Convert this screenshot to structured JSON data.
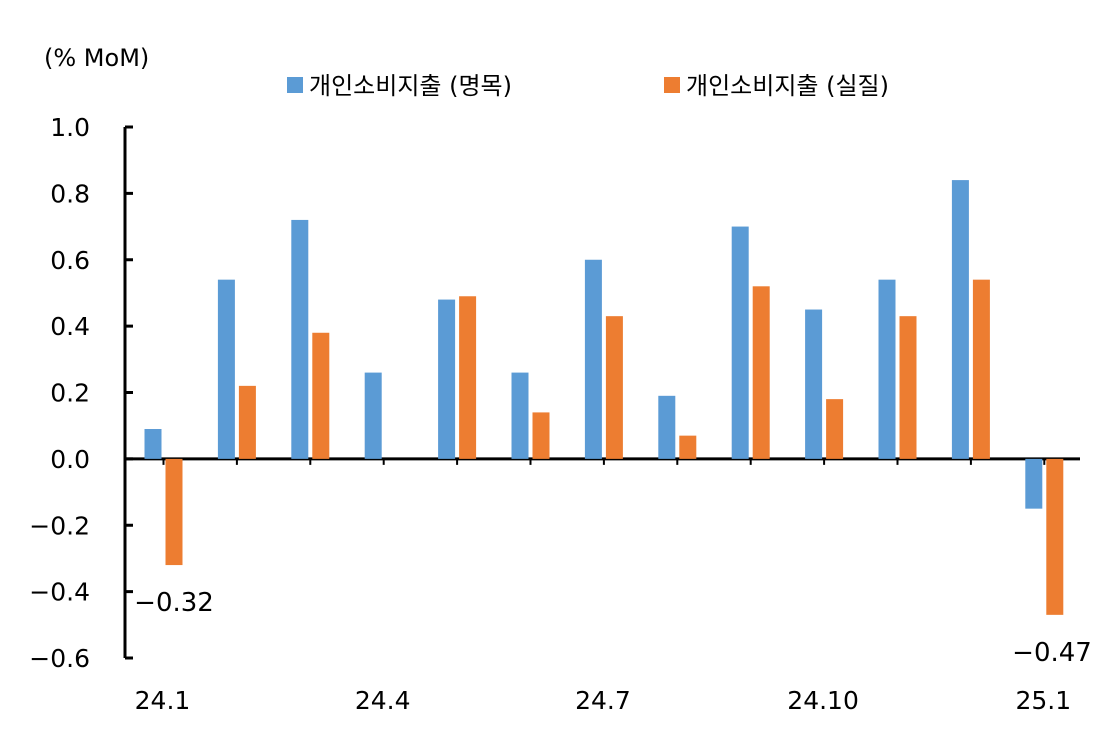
{
  "chart_data": {
    "type": "bar",
    "unit_label": "(% MoM)",
    "x_tick_labels": [
      "24.1",
      "24.4",
      "24.7",
      "24.10",
      "25.1"
    ],
    "categories": [
      "24.1",
      "24.2",
      "24.3",
      "24.4",
      "24.5",
      "24.6",
      "24.7",
      "24.8",
      "24.9",
      "24.10",
      "24.11",
      "24.12",
      "25.1"
    ],
    "series": [
      {
        "name": "개인소비지출 (명목)",
        "color": "#5B9BD5",
        "values": [
          0.09,
          0.54,
          0.72,
          0.26,
          0.48,
          0.26,
          0.6,
          0.19,
          0.7,
          0.45,
          0.54,
          0.84,
          -0.15
        ]
      },
      {
        "name": "개인소비지출 (실질)",
        "color": "#ED7D31",
        "values": [
          -0.32,
          0.22,
          0.38,
          0.0,
          0.49,
          0.14,
          0.43,
          0.07,
          0.52,
          0.18,
          0.43,
          0.54,
          -0.47
        ]
      }
    ],
    "y_ticks": [
      "1.0",
      "0.8",
      "0.6",
      "0.4",
      "0.2",
      "0.0",
      "−0.2",
      "−0.4",
      "−0.6"
    ],
    "ylim": [
      -0.6,
      1.0
    ],
    "annotations": [
      {
        "text": "−0.32",
        "category": "24.1",
        "series": 1
      },
      {
        "text": "−0.47",
        "category": "25.1",
        "series": 1
      }
    ],
    "legend_position": "top",
    "grid": false
  }
}
